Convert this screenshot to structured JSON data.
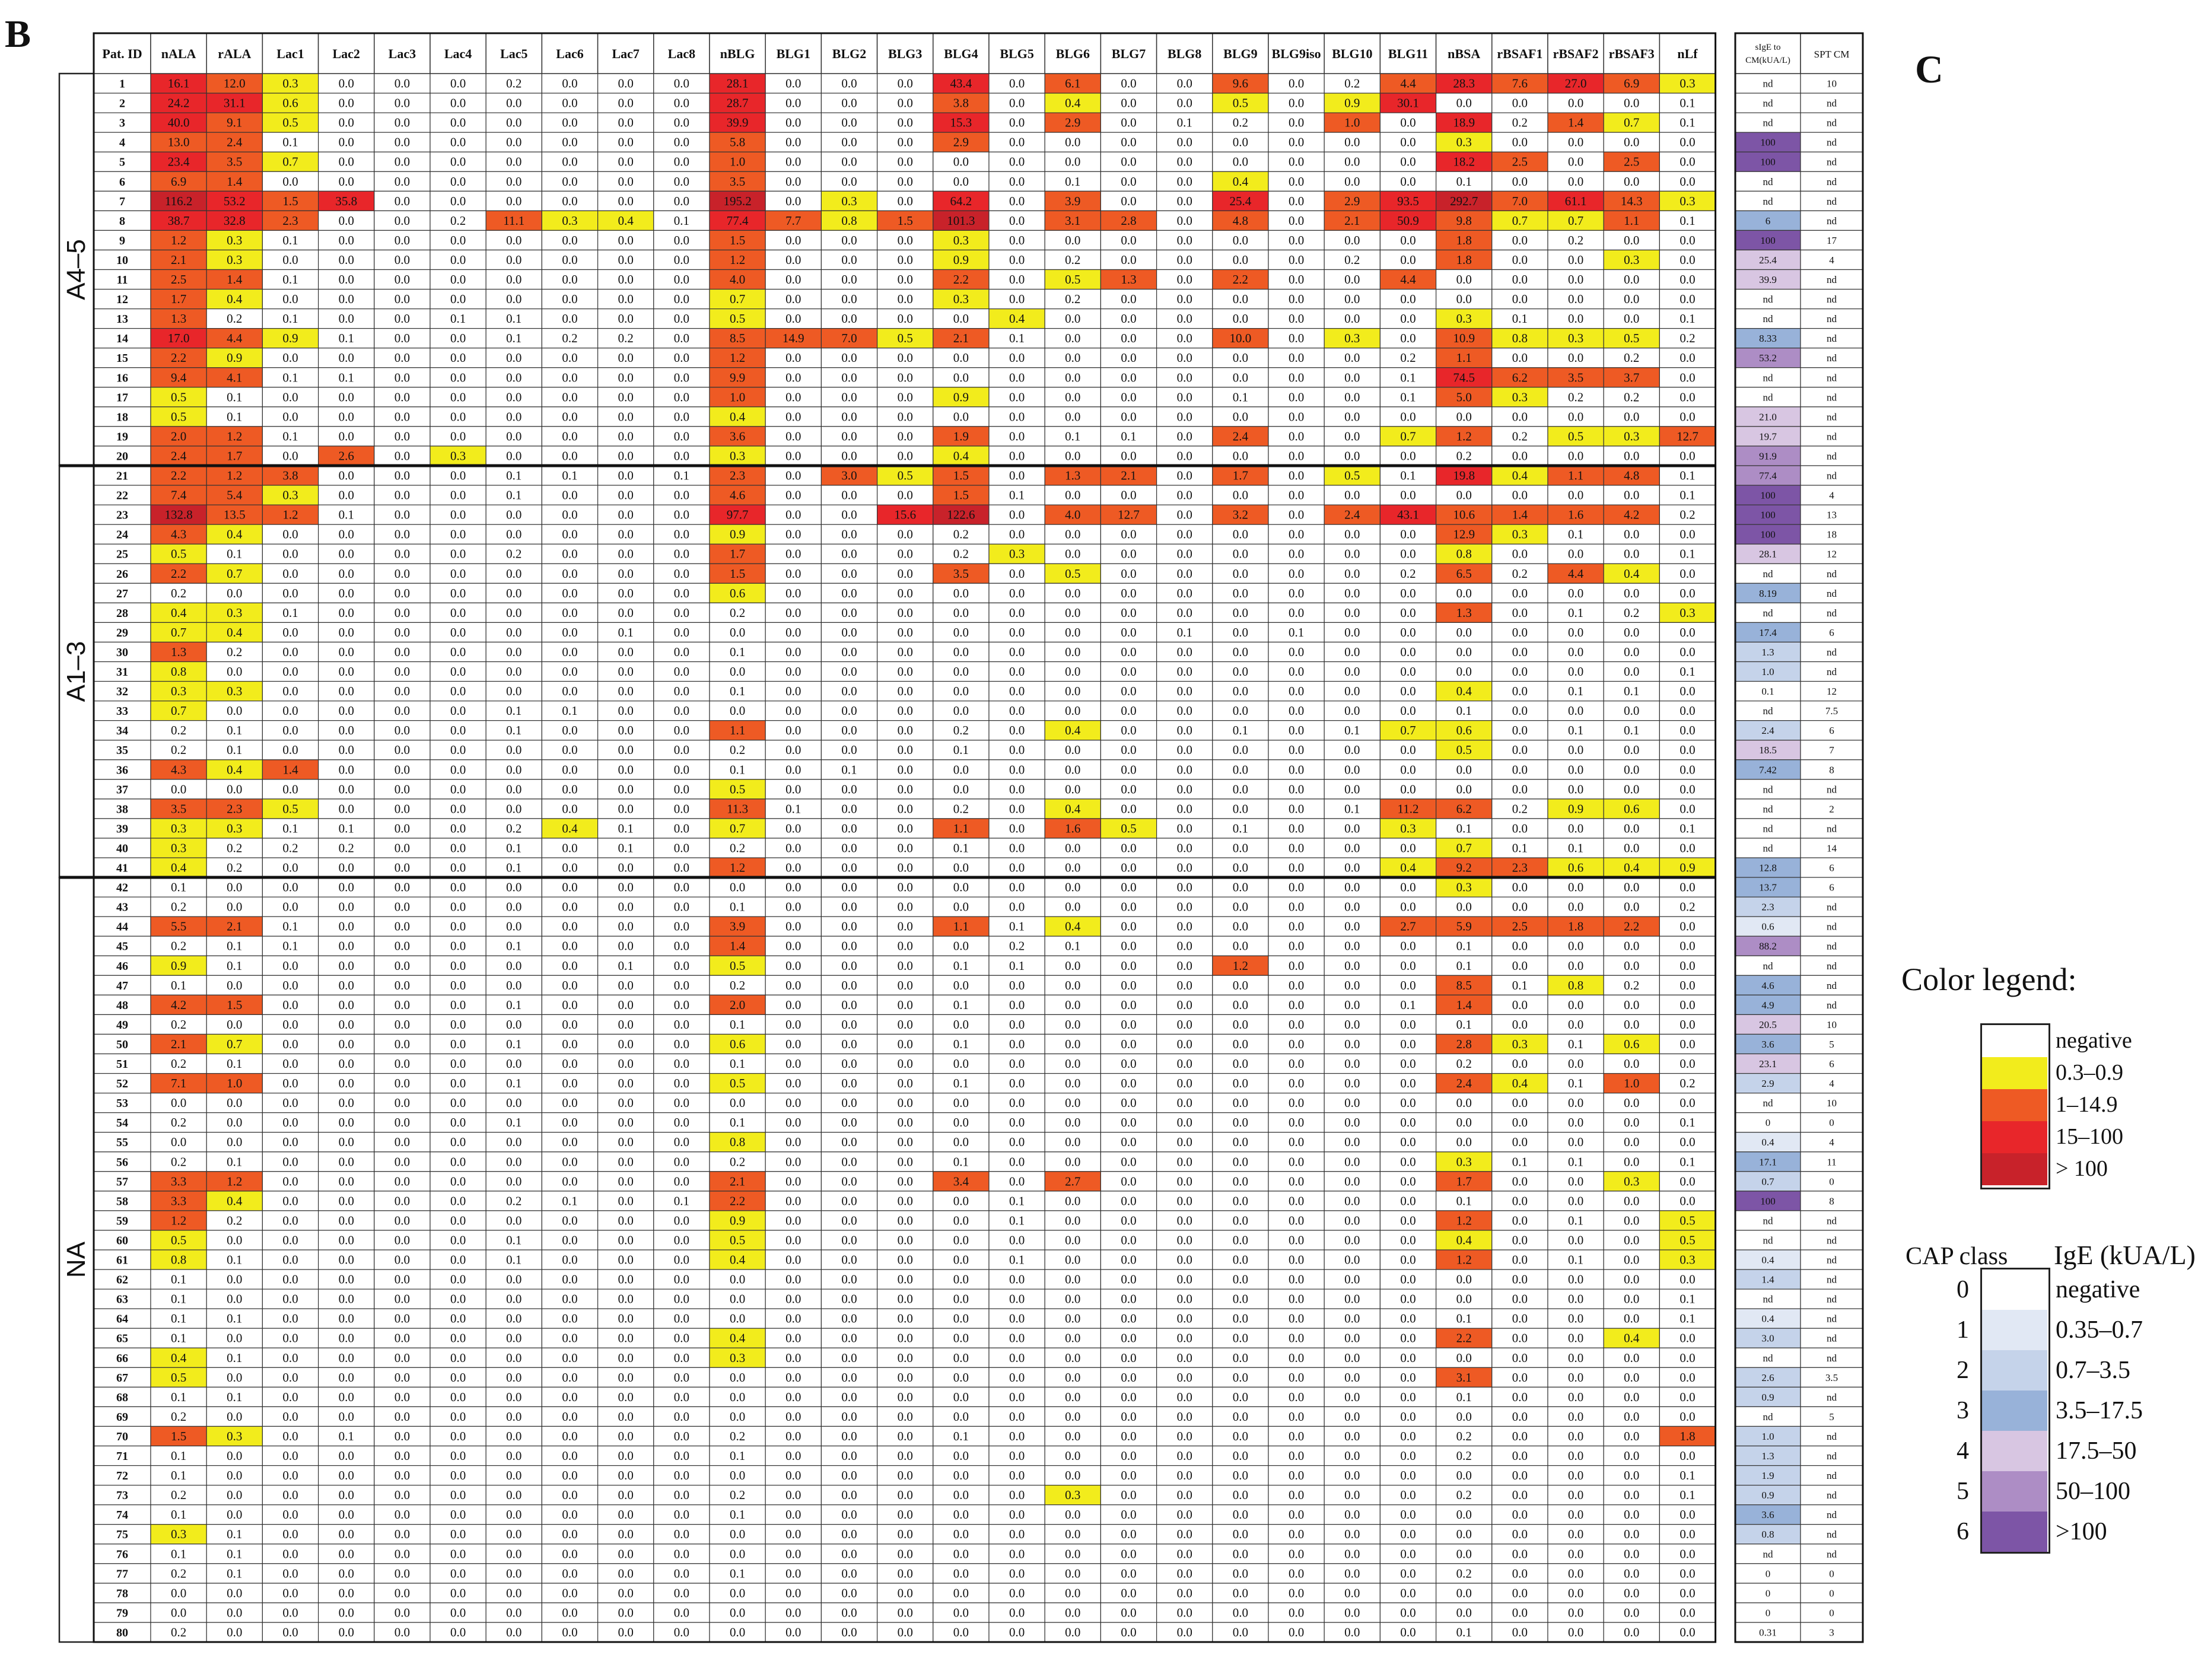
{
  "panels": {
    "b": "B",
    "c": "C"
  },
  "chart_data": {
    "type": "heatmap",
    "header": [
      "Pat. ID",
      "nALA",
      "rALA",
      "Lac1",
      "Lac2",
      "Lac3",
      "Lac4",
      "Lac5",
      "Lac6",
      "Lac7",
      "Lac8",
      "nBLG",
      "BLG1",
      "BLG2",
      "BLG3",
      "BLG4",
      "BLG5",
      "BLG6",
      "BLG7",
      "BLG8",
      "BLG9",
      "BLG9iso",
      "BLG10",
      "BLG11",
      "nBSA",
      "rBSAF1",
      "rBSAF2",
      "rBSAF3",
      "nLf"
    ],
    "side_header": [
      "sIgE to CM(kUA/L)",
      "SPT CM"
    ],
    "groups": [
      {
        "label": "A4–5",
        "from": 1,
        "to": 20
      },
      {
        "label": "A1–3",
        "from": 21,
        "to": 41
      },
      {
        "label": "NA",
        "from": 42,
        "to": 80
      }
    ],
    "rows": [
      "1|16.1|12.0|0.3|0.0|0.0|0.0|0.2|0.0|0.0|0.0|28.1|0.0|0.0|0.0|43.4|0.0|6.1|0.0|0.0|9.6|0.0|0.2|4.4|28.3|7.6|27.0|6.9|0.3|nd|10",
      "2|24.2|31.1|0.6|0.0|0.0|0.0|0.0|0.0|0.0|0.0|28.7|0.0|0.0|0.0|3.8|0.0|0.4|0.0|0.0|0.5|0.0|0.9|30.1|0.0|0.0|0.0|0.0|0.1|nd|nd",
      "3|40.0|9.1|0.5|0.0|0.0|0.0|0.0|0.0|0.0|0.0|39.9|0.0|0.0|0.0|15.3|0.0|2.9|0.0|0.1|0.2|0.0|1.0|0.0|18.9|0.2|1.4|0.7|0.1|nd|nd",
      "4|13.0|2.4|0.1|0.0|0.0|0.0|0.0|0.0|0.0|0.0|5.8|0.0|0.0|0.0|2.9|0.0|0.0|0.0|0.0|0.0|0.0|0.0|0.0|0.3|0.0|0.0|0.0|0.0|100|nd",
      "5|23.4|3.5|0.7|0.0|0.0|0.0|0.0|0.0|0.0|0.0|1.0|0.0|0.0|0.0|0.0|0.0|0.0|0.0|0.0|0.0|0.0|0.0|0.0|18.2|2.5|0.0|2.5|0.0|100|nd",
      "6|6.9|1.4|0.0|0.0|0.0|0.0|0.0|0.0|0.0|0.0|3.5|0.0|0.0|0.0|0.0|0.0|0.1|0.0|0.0|0.4|0.0|0.0|0.0|0.1|0.0|0.0|0.0|0.0|nd|nd",
      "7|116.2|53.2|1.5|35.8|0.0|0.0|0.0|0.0|0.0|0.0|195.2|0.0|0.3|0.0|64.2|0.0|3.9|0.0|0.0|25.4|0.0|2.9|93.5|292.7|7.0|61.1|14.3|0.3|nd|nd",
      "8|38.7|32.8|2.3|0.0|0.0|0.2|11.1|0.3|0.4|0.1|77.4|7.7|0.8|1.5|101.3|0.0|3.1|2.8|0.0|4.8|0.0|2.1|50.9|9.8|0.7|0.7|1.1|0.1|6|nd",
      "9|1.2|0.3|0.1|0.0|0.0|0.0|0.0|0.0|0.0|0.0|1.5|0.0|0.0|0.0|0.3|0.0|0.0|0.0|0.0|0.0|0.0|0.0|0.0|1.8|0.0|0.2|0.0|0.0|100|17",
      "10|2.1|0.3|0.0|0.0|0.0|0.0|0.0|0.0|0.0|0.0|1.2|0.0|0.0|0.0|0.9|0.0|0.2|0.0|0.0|0.0|0.0|0.2|0.0|1.8|0.0|0.0|0.3|0.0|25.4|4",
      "11|2.5|1.4|0.1|0.0|0.0|0.0|0.0|0.0|0.0|0.0|4.0|0.0|0.0|0.0|2.2|0.0|0.5|1.3|0.0|2.2|0.0|0.0|4.4|0.0|0.0|0.0|0.0|0.0|39.9|nd",
      "12|1.7|0.4|0.0|0.0|0.0|0.0|0.0|0.0|0.0|0.0|0.7|0.0|0.0|0.0|0.3|0.0|0.2|0.0|0.0|0.0|0.0|0.0|0.0|0.0|0.0|0.0|0.0|0.0|nd|nd",
      "13|1.3|0.2|0.1|0.0|0.0|0.1|0.1|0.0|0.0|0.0|0.5|0.0|0.0|0.0|0.0|0.4|0.0|0.0|0.0|0.0|0.0|0.0|0.0|0.3|0.1|0.0|0.0|0.1|nd|nd",
      "14|17.0|4.4|0.9|0.1|0.0|0.0|0.1|0.2|0.2|0.0|8.5|14.9|7.0|0.5|2.1|0.1|0.0|0.0|0.0|10.0|0.0|0.3|0.0|10.9|0.8|0.3|0.5|0.2|8.33|nd",
      "15|2.2|0.9|0.0|0.0|0.0|0.0|0.0|0.0|0.0|0.0|1.2|0.0|0.0|0.0|0.0|0.0|0.0|0.0|0.0|0.0|0.0|0.0|0.2|1.1|0.0|0.0|0.2|0.0|53.2|nd",
      "16|9.4|4.1|0.1|0.1|0.0|0.0|0.0|0.0|0.0|0.0|9.9|0.0|0.0|0.0|0.0|0.0|0.0|0.0|0.0|0.0|0.0|0.0|0.1|74.5|6.2|3.5|3.7|0.0|nd|nd",
      "17|0.5|0.1|0.0|0.0|0.0|0.0|0.0|0.0|0.0|0.0|1.0|0.0|0.0|0.0|0.9|0.0|0.0|0.0|0.0|0.1|0.0|0.0|0.1|5.0|0.3|0.2|0.2|0.0|nd|nd",
      "18|0.5|0.1|0.0|0.0|0.0|0.0|0.0|0.0|0.0|0.0|0.4|0.0|0.0|0.0|0.0|0.0|0.0|0.0|0.0|0.0|0.0|0.0|0.0|0.0|0.0|0.0|0.0|0.0|21.0|nd",
      "19|2.0|1.2|0.1|0.0|0.0|0.0|0.0|0.0|0.0|0.0|3.6|0.0|0.0|0.0|1.9|0.0|0.1|0.1|0.0|2.4|0.0|0.0|0.7|1.2|0.2|0.5|0.3|12.7|19.7|nd",
      "20|2.4|1.7|0.0|2.6|0.0|0.3|0.0|0.0|0.0|0.0|0.3|0.0|0.0|0.0|0.4|0.0|0.0|0.0|0.0|0.0|0.0|0.0|0.0|0.2|0.0|0.0|0.0|0.0|91.9|nd",
      "21|2.2|1.2|3.8|0.0|0.0|0.0|0.1|0.1|0.0|0.1|2.3|0.0|3.0|0.5|1.5|0.0|1.3|2.1|0.0|1.7|0.0|0.5|0.1|19.8|0.4|1.1|4.8|0.1|77.4|nd",
      "22|7.4|5.4|0.3|0.0|0.0|0.0|0.1|0.0|0.0|0.0|4.6|0.0|0.0|0.0|1.5|0.1|0.0|0.0|0.0|0.0|0.0|0.0|0.0|0.0|0.0|0.0|0.0|0.1|100|4",
      "23|132.8|13.5|1.2|0.1|0.0|0.0|0.0|0.0|0.0|0.0|97.7|0.0|0.0|15.6|122.6|0.0|4.0|12.7|0.0|3.2|0.0|2.4|43.1|10.6|1.4|1.6|4.2|0.2|100|13",
      "24|4.3|0.4|0.0|0.0|0.0|0.0|0.0|0.0|0.0|0.0|0.9|0.0|0.0|0.0|0.2|0.0|0.0|0.0|0.0|0.0|0.0|0.0|0.0|12.9|0.3|0.1|0.0|0.0|100|18",
      "25|0.5|0.1|0.0|0.0|0.0|0.0|0.2|0.0|0.0|0.0|1.7|0.0|0.0|0.0|0.2|0.3|0.0|0.0|0.0|0.0|0.0|0.0|0.0|0.8|0.0|0.0|0.0|0.1|28.1|12",
      "26|2.2|0.7|0.0|0.0|0.0|0.0|0.0|0.0|0.0|0.0|1.5|0.0|0.0|0.0|3.5|0.0|0.5|0.0|0.0|0.0|0.0|0.0|0.2|6.5|0.2|4.4|0.4|0.0|nd|nd",
      "27|0.2|0.0|0.0|0.0|0.0|0.0|0.0|0.0|0.0|0.0|0.6|0.0|0.0|0.0|0.0|0.0|0.0|0.0|0.0|0.0|0.0|0.0|0.0|0.0|0.0|0.0|0.0|0.0|8.19|nd",
      "28|0.4|0.3|0.1|0.0|0.0|0.0|0.0|0.0|0.0|0.0|0.2|0.0|0.0|0.0|0.0|0.0|0.0|0.0|0.0|0.0|0.0|0.0|0.0|1.3|0.0|0.1|0.2|0.3|nd|nd",
      "29|0.7|0.4|0.0|0.0|0.0|0.0|0.0|0.0|0.1|0.0|0.0|0.0|0.0|0.0|0.0|0.0|0.0|0.0|0.1|0.0|0.1|0.0|0.0|0.0|0.0|0.0|0.0|0.0|17.4|6",
      "30|1.3|0.2|0.0|0.0|0.0|0.0|0.0|0.0|0.0|0.0|0.1|0.0|0.0|0.0|0.0|0.0|0.0|0.0|0.0|0.0|0.0|0.0|0.0|0.0|0.0|0.0|0.0|0.0|1.3|nd",
      "31|0.8|0.0|0.0|0.0|0.0|0.0|0.0|0.0|0.0|0.0|0.0|0.0|0.0|0.0|0.0|0.0|0.0|0.0|0.0|0.0|0.0|0.0|0.0|0.0|0.0|0.0|0.0|0.1|1.0|nd",
      "32|0.3|0.3|0.0|0.0|0.0|0.0|0.0|0.0|0.0|0.0|0.1|0.0|0.0|0.0|0.0|0.0|0.0|0.0|0.0|0.0|0.0|0.0|0.0|0.4|0.0|0.1|0.1|0.0|0.1|12",
      "33|0.7|0.0|0.0|0.0|0.0|0.0|0.1|0.1|0.0|0.0|0.0|0.0|0.0|0.0|0.0|0.0|0.0|0.0|0.0|0.0|0.0|0.0|0.0|0.1|0.0|0.0|0.0|0.0|nd|7.5",
      "34|0.2|0.1|0.0|0.0|0.0|0.0|0.1|0.0|0.0|0.0|1.1|0.0|0.0|0.0|0.2|0.0|0.4|0.0|0.0|0.1|0.0|0.1|0.7|0.6|0.0|0.1|0.1|0.0|2.4|6",
      "35|0.2|0.1|0.0|0.0|0.0|0.0|0.0|0.0|0.0|0.0|0.2|0.0|0.0|0.0|0.1|0.0|0.0|0.0|0.0|0.0|0.0|0.0|0.0|0.5|0.0|0.0|0.0|0.0|18.5|7",
      "36|4.3|0.4|1.4|0.0|0.0|0.0|0.0|0.0|0.0|0.0|0.1|0.0|0.1|0.0|0.0|0.0|0.0|0.0|0.0|0.0|0.0|0.0|0.0|0.0|0.0|0.0|0.0|0.0|7.42|8",
      "37|0.0|0.0|0.0|0.0|0.0|0.0|0.0|0.0|0.0|0.0|0.5|0.0|0.0|0.0|0.0|0.0|0.0|0.0|0.0|0.0|0.0|0.0|0.0|0.0|0.0|0.0|0.0|0.0|nd|nd",
      "38|3.5|2.3|0.5|0.0|0.0|0.0|0.0|0.0|0.0|0.0|11.3|0.1|0.0|0.0|0.2|0.0|0.4|0.0|0.0|0.0|0.0|0.1|11.2|6.2|0.2|0.9|0.6|0.0|nd|2",
      "39|0.3|0.3|0.1|0.1|0.0|0.0|0.2|0.4|0.1|0.0|0.7|0.0|0.0|0.0|1.1|0.0|1.6|0.5|0.0|0.1|0.0|0.0|0.3|0.1|0.0|0.0|0.0|0.1|nd|nd",
      "40|0.3|0.2|0.2|0.2|0.0|0.0|0.1|0.0|0.1|0.0|0.2|0.0|0.0|0.0|0.1|0.0|0.0|0.0|0.0|0.0|0.0|0.0|0.0|0.7|0.1|0.1|0.0|0.0|nd|14",
      "41|0.4|0.2|0.0|0.0|0.0|0.0|0.1|0.0|0.0|0.0|1.2|0.0|0.0|0.0|0.0|0.0|0.0|0.0|0.0|0.0|0.0|0.0|0.4|9.2|2.3|0.6|0.4|0.9|12.8|6",
      "42|0.1|0.0|0.0|0.0|0.0|0.0|0.0|0.0|0.0|0.0|0.0|0.0|0.0|0.0|0.0|0.0|0.0|0.0|0.0|0.0|0.0|0.0|0.0|0.3|0.0|0.0|0.0|0.0|13.7|6",
      "43|0.2|0.0|0.0|0.0|0.0|0.0|0.0|0.0|0.0|0.0|0.1|0.0|0.0|0.0|0.0|0.0|0.0|0.0|0.0|0.0|0.0|0.0|0.0|0.0|0.0|0.0|0.0|0.2|2.3|nd",
      "44|5.5|2.1|0.1|0.0|0.0|0.0|0.0|0.0|0.0|0.0|3.9|0.0|0.0|0.0|1.1|0.1|0.4|0.0|0.0|0.0|0.0|0.0|2.7|5.9|2.5|1.8|2.2|0.0|0.6|nd",
      "45|0.2|0.1|0.1|0.0|0.0|0.0|0.1|0.0|0.0|0.0|1.4|0.0|0.0|0.0|0.0|0.2|0.1|0.0|0.0|0.0|0.0|0.0|0.0|0.1|0.0|0.0|0.0|0.0|88.2|nd",
      "46|0.9|0.1|0.0|0.0|0.0|0.0|0.0|0.0|0.1|0.0|0.5|0.0|0.0|0.0|0.1|0.1|0.0|0.0|0.0|1.2|0.0|0.0|0.0|0.1|0.0|0.0|0.0|0.0|nd|nd",
      "47|0.1|0.0|0.0|0.0|0.0|0.0|0.0|0.0|0.0|0.0|0.2|0.0|0.0|0.0|0.0|0.0|0.0|0.0|0.0|0.0|0.0|0.0|0.0|8.5|0.1|0.8|0.2|0.0|4.6|nd",
      "48|4.2|1.5|0.0|0.0|0.0|0.0|0.1|0.0|0.0|0.0|2.0|0.0|0.0|0.0|0.1|0.0|0.0|0.0|0.0|0.0|0.0|0.0|0.1|1.4|0.0|0.0|0.0|0.0|4.9|nd",
      "49|0.2|0.0|0.0|0.0|0.0|0.0|0.0|0.0|0.0|0.0|0.1|0.0|0.0|0.0|0.0|0.0|0.0|0.0|0.0|0.0|0.0|0.0|0.0|0.1|0.0|0.0|0.0|0.0|20.5|10",
      "50|2.1|0.7|0.0|0.0|0.0|0.0|0.1|0.0|0.0|0.0|0.6|0.0|0.0|0.0|0.1|0.0|0.0|0.0|0.0|0.0|0.0|0.0|0.0|2.8|0.3|0.1|0.6|0.0|3.6|5",
      "51|0.2|0.1|0.0|0.0|0.0|0.0|0.0|0.0|0.0|0.0|0.1|0.0|0.0|0.0|0.0|0.0|0.0|0.0|0.0|0.0|0.0|0.0|0.0|0.2|0.0|0.0|0.0|0.0|23.1|6",
      "52|7.1|1.0|0.0|0.0|0.0|0.0|0.1|0.0|0.0|0.0|0.5|0.0|0.0|0.0|0.1|0.0|0.0|0.0|0.0|0.0|0.0|0.0|0.0|2.4|0.4|0.1|1.0|0.2|2.9|4",
      "53|0.0|0.0|0.0|0.0|0.0|0.0|0.0|0.0|0.0|0.0|0.0|0.0|0.0|0.0|0.0|0.0|0.0|0.0|0.0|0.0|0.0|0.0|0.0|0.0|0.0|0.0|0.0|0.0|nd|10",
      "54|0.2|0.0|0.0|0.0|0.0|0.0|0.1|0.0|0.0|0.0|0.1|0.0|0.0|0.0|0.0|0.0|0.0|0.0|0.0|0.0|0.0|0.0|0.0|0.0|0.0|0.0|0.0|0.1|0|0",
      "55|0.0|0.0|0.0|0.0|0.0|0.0|0.0|0.0|0.0|0.0|0.8|0.0|0.0|0.0|0.0|0.0|0.0|0.0|0.0|0.0|0.0|0.0|0.0|0.0|0.0|0.0|0.0|0.0|0.4|4",
      "56|0.2|0.1|0.0|0.0|0.0|0.0|0.0|0.0|0.0|0.0|0.2|0.0|0.0|0.0|0.1|0.0|0.0|0.0|0.0|0.0|0.0|0.0|0.0|0.3|0.1|0.1|0.0|0.1|17.1|11",
      "57|3.3|1.2|0.0|0.0|0.0|0.0|0.0|0.0|0.0|0.0|2.1|0.0|0.0|0.0|3.4|0.0|2.7|0.0|0.0|0.0|0.0|0.0|0.0|1.7|0.0|0.0|0.3|0.0|0.7|0",
      "58|3.3|0.4|0.0|0.0|0.0|0.0|0.2|0.1|0.0|0.1|2.2|0.0|0.0|0.0|0.0|0.1|0.0|0.0|0.0|0.0|0.0|0.0|0.0|0.1|0.0|0.0|0.0|0.0|100|8",
      "59|1.2|0.2|0.0|0.0|0.0|0.0|0.0|0.0|0.0|0.0|0.9|0.0|0.0|0.0|0.0|0.1|0.0|0.0|0.0|0.0|0.0|0.0|0.0|1.2|0.0|0.1|0.0|0.5|nd|nd",
      "60|0.5|0.0|0.0|0.0|0.0|0.0|0.1|0.0|0.0|0.0|0.5|0.0|0.0|0.0|0.0|0.0|0.0|0.0|0.0|0.0|0.0|0.0|0.0|0.4|0.0|0.0|0.0|0.5|nd|nd",
      "61|0.8|0.1|0.0|0.0|0.0|0.0|0.1|0.0|0.0|0.0|0.4|0.0|0.0|0.0|0.0|0.1|0.0|0.0|0.0|0.0|0.0|0.0|0.0|1.2|0.0|0.1|0.0|0.3|0.4|nd",
      "62|0.1|0.0|0.0|0.0|0.0|0.0|0.0|0.0|0.0|0.0|0.0|0.0|0.0|0.0|0.0|0.0|0.0|0.0|0.0|0.0|0.0|0.0|0.0|0.0|0.0|0.0|0.0|0.0|1.4|nd",
      "63|0.1|0.0|0.0|0.0|0.0|0.0|0.0|0.0|0.0|0.0|0.0|0.0|0.0|0.0|0.0|0.0|0.0|0.0|0.0|0.0|0.0|0.0|0.0|0.0|0.0|0.0|0.0|0.1|nd|nd",
      "64|0.1|0.1|0.0|0.0|0.0|0.0|0.0|0.0|0.0|0.0|0.0|0.0|0.0|0.0|0.0|0.0|0.0|0.0|0.0|0.0|0.0|0.0|0.0|0.1|0.0|0.0|0.0|0.1|0.4|nd",
      "65|0.1|0.0|0.0|0.0|0.0|0.0|0.0|0.0|0.0|0.0|0.4|0.0|0.0|0.0|0.0|0.0|0.0|0.0|0.0|0.0|0.0|0.0|0.0|2.2|0.0|0.0|0.4|0.0|3.0|nd",
      "66|0.4|0.1|0.0|0.0|0.0|0.0|0.0|0.0|0.0|0.0|0.3|0.0|0.0|0.0|0.0|0.0|0.0|0.0|0.0|0.0|0.0|0.0|0.0|0.0|0.0|0.0|0.0|0.0|nd|nd",
      "67|0.5|0.0|0.0|0.0|0.0|0.0|0.0|0.0|0.0|0.0|0.0|0.0|0.0|0.0|0.0|0.0|0.0|0.0|0.0|0.0|0.0|0.0|0.0|3.1|0.0|0.0|0.0|0.0|2.6|3.5",
      "68|0.1|0.1|0.0|0.0|0.0|0.0|0.0|0.0|0.0|0.0|0.0|0.0|0.0|0.0|0.0|0.0|0.0|0.0|0.0|0.0|0.0|0.0|0.0|0.1|0.0|0.0|0.0|0.0|0.9|nd",
      "69|0.2|0.0|0.0|0.0|0.0|0.0|0.0|0.0|0.0|0.0|0.0|0.0|0.0|0.0|0.0|0.0|0.0|0.0|0.0|0.0|0.0|0.0|0.0|0.0|0.0|0.0|0.0|0.0|nd|5",
      "70|1.5|0.3|0.0|0.1|0.0|0.0|0.0|0.0|0.0|0.0|0.2|0.0|0.0|0.0|0.1|0.0|0.0|0.0|0.0|0.0|0.0|0.0|0.0|0.2|0.0|0.0|0.0|1.8|1.0|nd",
      "71|0.1|0.0|0.0|0.0|0.0|0.0|0.0|0.0|0.0|0.0|0.1|0.0|0.0|0.0|0.0|0.0|0.0|0.0|0.0|0.0|0.0|0.0|0.0|0.2|0.0|0.0|0.0|0.0|1.3|nd",
      "72|0.1|0.0|0.0|0.0|0.0|0.0|0.0|0.0|0.0|0.0|0.0|0.0|0.0|0.0|0.0|0.0|0.0|0.0|0.0|0.0|0.0|0.0|0.0|0.0|0.0|0.0|0.0|0.1|1.9|nd",
      "73|0.2|0.0|0.0|0.0|0.0|0.0|0.0|0.0|0.0|0.0|0.2|0.0|0.0|0.0|0.0|0.0|0.3|0.0|0.0|0.0|0.0|0.0|0.0|0.2|0.0|0.0|0.0|0.1|0.9|nd",
      "74|0.1|0.0|0.0|0.0|0.0|0.0|0.0|0.0|0.0|0.0|0.1|0.0|0.0|0.0|0.0|0.0|0.0|0.0|0.0|0.0|0.0|0.0|0.0|0.0|0.0|0.0|0.0|0.0|3.6|nd",
      "75|0.3|0.1|0.0|0.0|0.0|0.0|0.0|0.0|0.0|0.0|0.0|0.0|0.0|0.0|0.0|0.0|0.0|0.0|0.0|0.0|0.0|0.0|0.0|0.0|0.0|0.0|0.0|0.0|0.8|nd",
      "76|0.1|0.1|0.0|0.0|0.0|0.0|0.0|0.0|0.0|0.0|0.0|0.0|0.0|0.0|0.0|0.0|0.0|0.0|0.0|0.0|0.0|0.0|0.0|0.0|0.0|0.0|0.0|0.0|nd|nd",
      "77|0.2|0.1|0.0|0.0|0.0|0.0|0.0|0.0|0.0|0.0|0.1|0.0|0.0|0.0|0.0|0.0|0.0|0.0|0.0|0.0|0.0|0.0|0.0|0.2|0.0|0.0|0.0|0.0|0|0",
      "78|0.0|0.0|0.0|0.0|0.0|0.0|0.0|0.0|0.0|0.0|0.0|0.0|0.0|0.0|0.0|0.0|0.0|0.0|0.0|0.0|0.0|0.0|0.0|0.0|0.0|0.0|0.0|0.0|0|0",
      "79|0.0|0.0|0.0|0.0|0.0|0.0|0.0|0.0|0.0|0.0|0.0|0.0|0.0|0.0|0.0|0.0|0.0|0.0|0.0|0.0|0.0|0.0|0.0|0.0|0.0|0.0|0.0|0.0|0|0",
      "80|0.2|0.0|0.0|0.0|0.0|0.0|0.0|0.0|0.0|0.0|0.0|0.0|0.0|0.0|0.0|0.0|0.0|0.0|0.0|0.0|0.0|0.0|0.0|0.1|0.0|0.0|0.0|0.0|0.31|3"
    ],
    "heat_scale": [
      {
        "label": "negative",
        "max": 0.3,
        "color": "#ffffff"
      },
      {
        "label": "0.3–0.9",
        "max": 1.0,
        "color": "#f2ec1c"
      },
      {
        "label": "1–14.9",
        "max": 15.0,
        "color": "#ee5a24"
      },
      {
        "label": "15–100",
        "max": 100.0,
        "color": "#e8262a"
      },
      {
        "label": "> 100",
        "max": 100000,
        "color": "#c8222a"
      }
    ],
    "cap_scale": [
      {
        "class": "0",
        "label": "negative",
        "max": 0.35,
        "color": "#ffffff"
      },
      {
        "class": "1",
        "label": "0.35–0.7",
        "max": 0.7,
        "color": "#e1e8f4"
      },
      {
        "class": "2",
        "label": "0.7–3.5",
        "max": 3.5,
        "color": "#c5d3ea"
      },
      {
        "class": "3",
        "label": "3.5–17.5",
        "max": 17.5,
        "color": "#98b2d9"
      },
      {
        "class": "4",
        "label": "17.5–50",
        "max": 50,
        "color": "#d8c6e2"
      },
      {
        "class": "5",
        "label": "50–100",
        "max": 100,
        "color": "#ad8dc5"
      },
      {
        "class": "6",
        "label": ">100",
        "max": 100000,
        "color": "#7d55a6"
      }
    ]
  },
  "legend": {
    "title": "Color legend:",
    "cap_class_header": "CAP class",
    "ige_header": "IgE (kUA/L)"
  }
}
